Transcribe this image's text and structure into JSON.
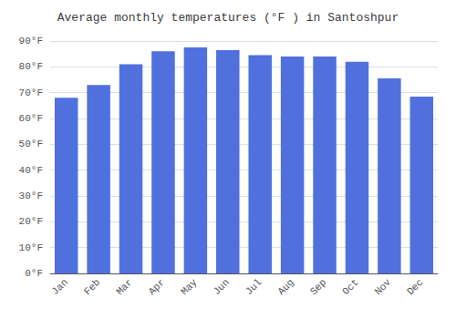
{
  "chart_data": {
    "type": "bar",
    "title": "Average monthly temperatures (°F ) in Santoshpur",
    "categories": [
      "Jan",
      "Feb",
      "Mar",
      "Apr",
      "May",
      "Jun",
      "Jul",
      "Aug",
      "Sep",
      "Oct",
      "Nov",
      "Dec"
    ],
    "values": [
      68,
      73,
      81,
      86,
      87.5,
      86.5,
      84.5,
      84,
      84,
      82,
      75.5,
      68.5
    ],
    "ylim": [
      0,
      90
    ],
    "yticks": [
      {
        "value": 0,
        "label": "0°F"
      },
      {
        "value": 10,
        "label": "10°F"
      },
      {
        "value": 20,
        "label": "20°F"
      },
      {
        "value": 30,
        "label": "30°F"
      },
      {
        "value": 40,
        "label": "40°F"
      },
      {
        "value": 50,
        "label": "50°F"
      },
      {
        "value": 60,
        "label": "60°F"
      },
      {
        "value": 70,
        "label": "70°F"
      },
      {
        "value": 80,
        "label": "80°F"
      },
      {
        "value": 90,
        "label": "90°F"
      }
    ],
    "grid": true
  }
}
